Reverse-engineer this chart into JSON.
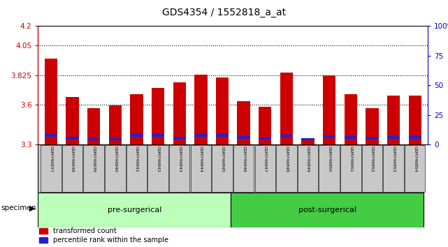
{
  "title": "GDS4354 / 1552818_a_at",
  "samples": [
    "GSM746837",
    "GSM746838",
    "GSM746839",
    "GSM746840",
    "GSM746841",
    "GSM746842",
    "GSM746843",
    "GSM746844",
    "GSM746845",
    "GSM746846",
    "GSM746847",
    "GSM746848",
    "GSM746849",
    "GSM746850",
    "GSM746851",
    "GSM746852",
    "GSM746853",
    "GSM746854"
  ],
  "red_values": [
    3.95,
    3.66,
    3.575,
    3.595,
    3.68,
    3.73,
    3.77,
    3.83,
    3.81,
    3.63,
    3.585,
    3.845,
    3.345,
    3.825,
    3.68,
    3.575,
    3.67,
    3.67
  ],
  "blue_bottom": [
    3.36,
    3.34,
    3.33,
    3.33,
    3.36,
    3.36,
    3.34,
    3.36,
    3.36,
    3.345,
    3.335,
    3.355,
    3.33,
    3.35,
    3.345,
    3.335,
    3.345,
    3.345
  ],
  "blue_height": [
    0.018,
    0.018,
    0.018,
    0.018,
    0.018,
    0.018,
    0.018,
    0.018,
    0.018,
    0.018,
    0.018,
    0.018,
    0.018,
    0.018,
    0.018,
    0.018,
    0.018,
    0.018
  ],
  "ymin": 3.3,
  "ymax": 4.2,
  "yticks_left": [
    3.3,
    3.6,
    3.825,
    4.05,
    4.2
  ],
  "yticks_right": [
    0,
    25,
    50,
    75,
    100
  ],
  "group1_label": "pre-surgerical",
  "group2_label": "post-surgerical",
  "group1_count": 9,
  "group2_count": 9,
  "bar_color": "#cc0000",
  "blue_color": "#2222cc",
  "tick_area_bg": "#c8c8c8",
  "group1_bg": "#bbffbb",
  "group2_bg": "#44cc44",
  "legend_red_label": "transformed count",
  "legend_blue_label": "percentile rank within the sample",
  "specimen_label": "specimen",
  "left_axis_color": "#cc0000",
  "right_axis_color": "#0000cc"
}
